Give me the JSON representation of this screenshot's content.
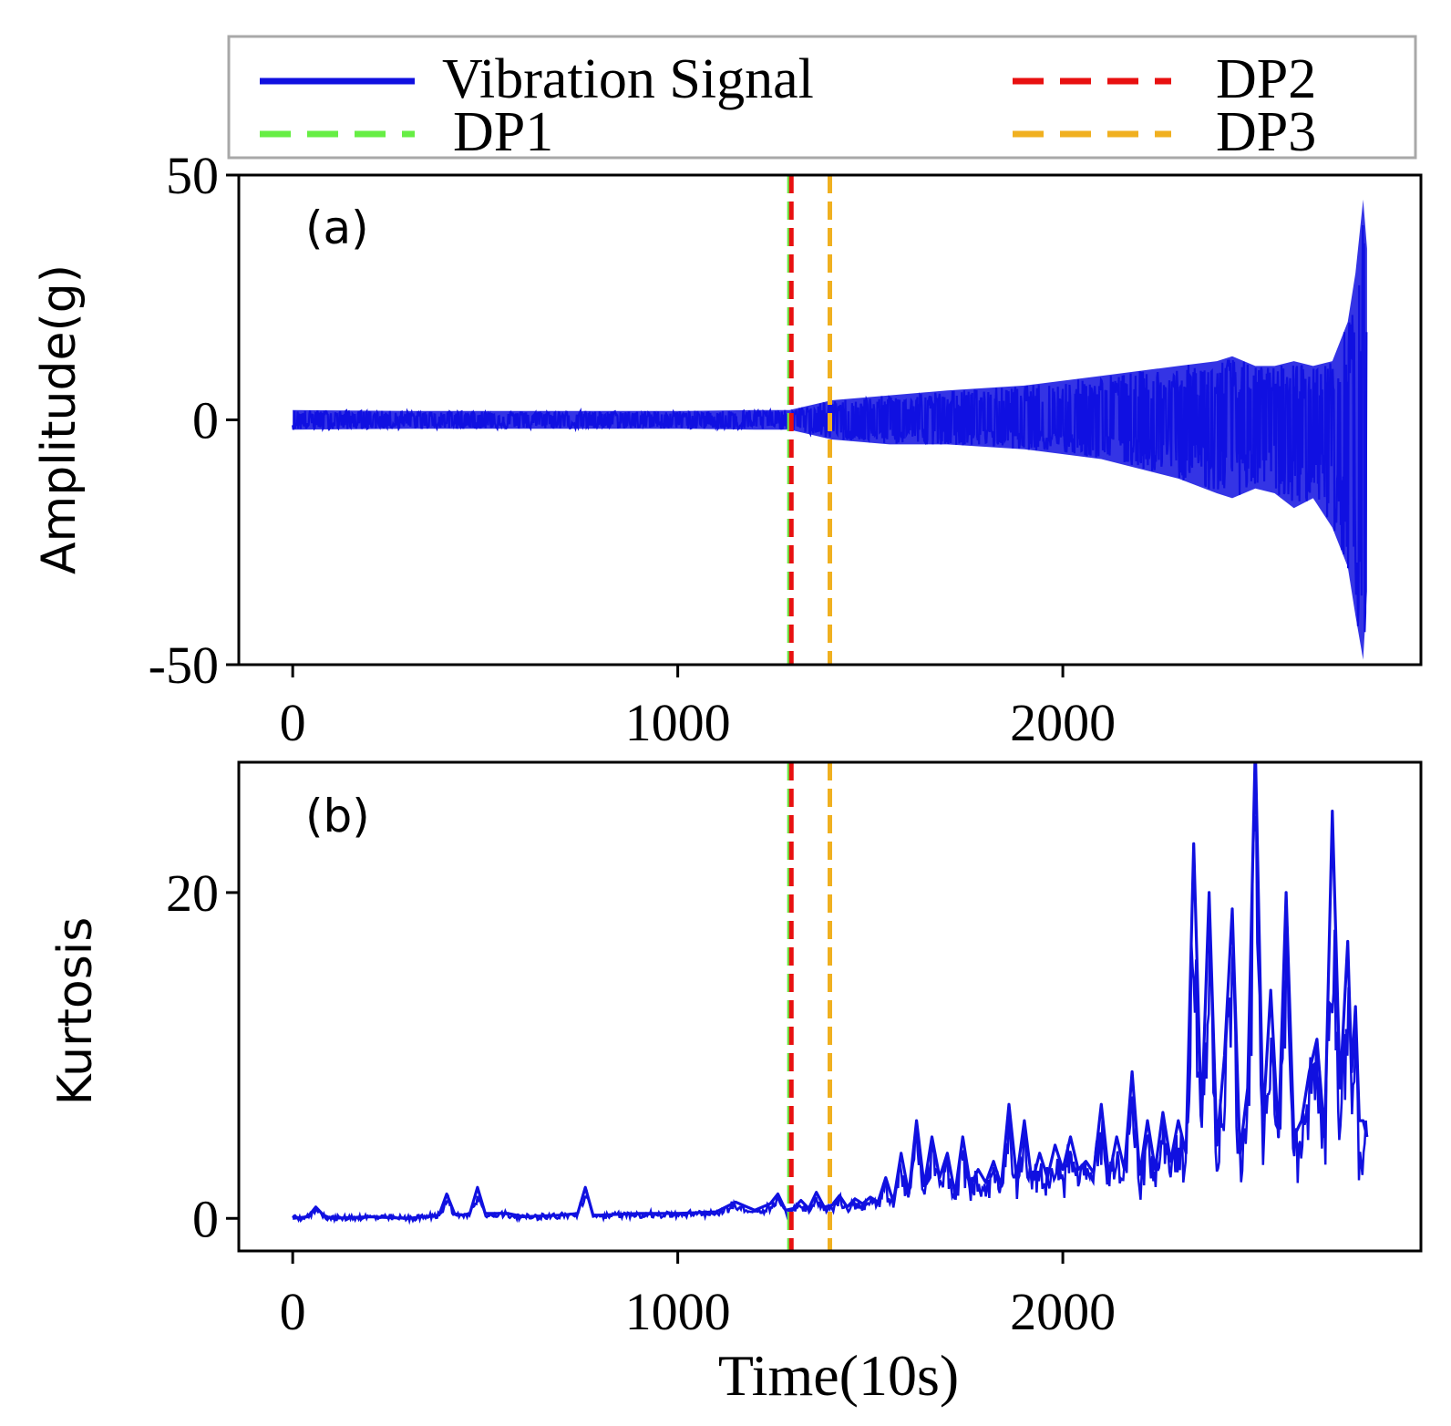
{
  "colors": {
    "signal": "#1010e0",
    "dp1": "#66ee44",
    "dp2": "#e81010",
    "dp3": "#f0b020",
    "legend_border": "#a8a8a8"
  },
  "legend": {
    "location": "top, above panel (a)",
    "entries": [
      {
        "label": "Vibration Signal",
        "style": "solid",
        "color_key": "signal"
      },
      {
        "label": "DP1",
        "style": "dashed",
        "color_key": "dp1"
      },
      {
        "label": "DP2",
        "style": "dashed",
        "color_key": "dp2"
      },
      {
        "label": "DP3",
        "style": "dashed",
        "color_key": "dp3"
      }
    ]
  },
  "xlabel": "Time(10s)",
  "chart_data": [
    {
      "type": "line",
      "panel_label": "(a)",
      "ylabel": "Amplitude(g)",
      "xlim": [
        -140,
        2930
      ],
      "ylim": [
        -50,
        50
      ],
      "xticks": [
        0,
        1000,
        2000
      ],
      "yticks": [
        -50,
        0,
        50
      ],
      "xtick_labels": [
        "0",
        "1000",
        "2000"
      ],
      "ytick_labels": [
        "-50",
        "0",
        "50"
      ],
      "grid": false,
      "series": [
        {
          "name": "Vibration Signal",
          "kind": "envelope",
          "x": [
            0,
            300,
            700,
            1000,
            1200,
            1290,
            1400,
            1550,
            1700,
            1900,
            2100,
            2300,
            2400,
            2440,
            2500,
            2550,
            2600,
            2650,
            2700,
            2740,
            2760,
            2780,
            2790
          ],
          "y_upper": [
            2,
            1.8,
            1.8,
            1.8,
            2,
            2,
            4,
            5,
            6,
            7,
            9,
            11,
            12,
            13,
            11,
            11,
            12,
            11,
            12,
            20,
            30,
            45,
            35
          ],
          "y_lower": [
            -2,
            -1.8,
            -1.8,
            -1.8,
            -2,
            -2,
            -4,
            -5,
            -5,
            -6,
            -8,
            -12,
            -15,
            -16,
            -14,
            -15,
            -18,
            -16,
            -22,
            -30,
            -40,
            -49,
            -35
          ]
        }
      ],
      "markers": [
        {
          "name": "DP1",
          "x": 1290
        },
        {
          "name": "DP2",
          "x": 1295
        },
        {
          "name": "DP3",
          "x": 1395
        }
      ]
    },
    {
      "type": "line",
      "panel_label": "(b)",
      "ylabel": "Kurtosis",
      "xlim": [
        -140,
        2930
      ],
      "ylim": [
        -2,
        28
      ],
      "xticks": [
        0,
        1000,
        2000
      ],
      "yticks": [
        0,
        20
      ],
      "xtick_labels": [
        "0",
        "1000",
        "2000"
      ],
      "ytick_labels": [
        "0",
        "20"
      ],
      "grid": false,
      "series": [
        {
          "name": "Vibration Signal",
          "kind": "line",
          "x": [
            0,
            40,
            60,
            80,
            100,
            200,
            300,
            380,
            400,
            420,
            440,
            460,
            480,
            500,
            560,
            600,
            700,
            740,
            760,
            780,
            800,
            900,
            1000,
            1100,
            1150,
            1200,
            1240,
            1260,
            1280,
            1300,
            1320,
            1340,
            1360,
            1380,
            1400,
            1420,
            1440,
            1460,
            1480,
            1500,
            1520,
            1540,
            1560,
            1580,
            1600,
            1620,
            1640,
            1660,
            1680,
            1700,
            1720,
            1740,
            1760,
            1780,
            1800,
            1820,
            1840,
            1860,
            1880,
            1900,
            1920,
            1940,
            1960,
            1980,
            2000,
            2020,
            2040,
            2060,
            2080,
            2100,
            2120,
            2140,
            2160,
            2180,
            2200,
            2220,
            2240,
            2260,
            2280,
            2300,
            2320,
            2340,
            2360,
            2380,
            2400,
            2420,
            2440,
            2460,
            2480,
            2500,
            2520,
            2540,
            2560,
            2580,
            2600,
            2620,
            2640,
            2660,
            2680,
            2700,
            2720,
            2740,
            2750,
            2760,
            2770,
            2780,
            2790
          ],
          "y": [
            0,
            0.1,
            0.7,
            0.2,
            0,
            0.1,
            0,
            0.2,
            1.5,
            0.3,
            0.2,
            0.3,
            1.9,
            0.3,
            0.3,
            0.1,
            0.2,
            0.3,
            1.9,
            0.2,
            0.2,
            0.3,
            0.3,
            0.4,
            1,
            0.5,
            0.9,
            1.5,
            0.5,
            0.6,
            1.1,
            0.6,
            1.6,
            0.7,
            0.8,
            1.4,
            0.7,
            1.2,
            0.9,
            1.3,
            1,
            2.5,
            1,
            4,
            1.5,
            6,
            2,
            5,
            2.5,
            4,
            1.5,
            5,
            2,
            3,
            2.2,
            3.5,
            2,
            7,
            2.5,
            6,
            2.2,
            4,
            2.5,
            4.5,
            3,
            5,
            3,
            3.5,
            2.8,
            7,
            2.5,
            5,
            3,
            9,
            2.7,
            6,
            3,
            6.5,
            3.5,
            6,
            4,
            23,
            6,
            20,
            4.5,
            10,
            19,
            4,
            8,
            29,
            6,
            14,
            5,
            20,
            5,
            6,
            9,
            11,
            5,
            25,
            8,
            17,
            9,
            13,
            6,
            6,
            5
          ]
        }
      ],
      "markers": [
        {
          "name": "DP1",
          "x": 1290
        },
        {
          "name": "DP2",
          "x": 1295
        },
        {
          "name": "DP3",
          "x": 1395
        }
      ]
    }
  ]
}
